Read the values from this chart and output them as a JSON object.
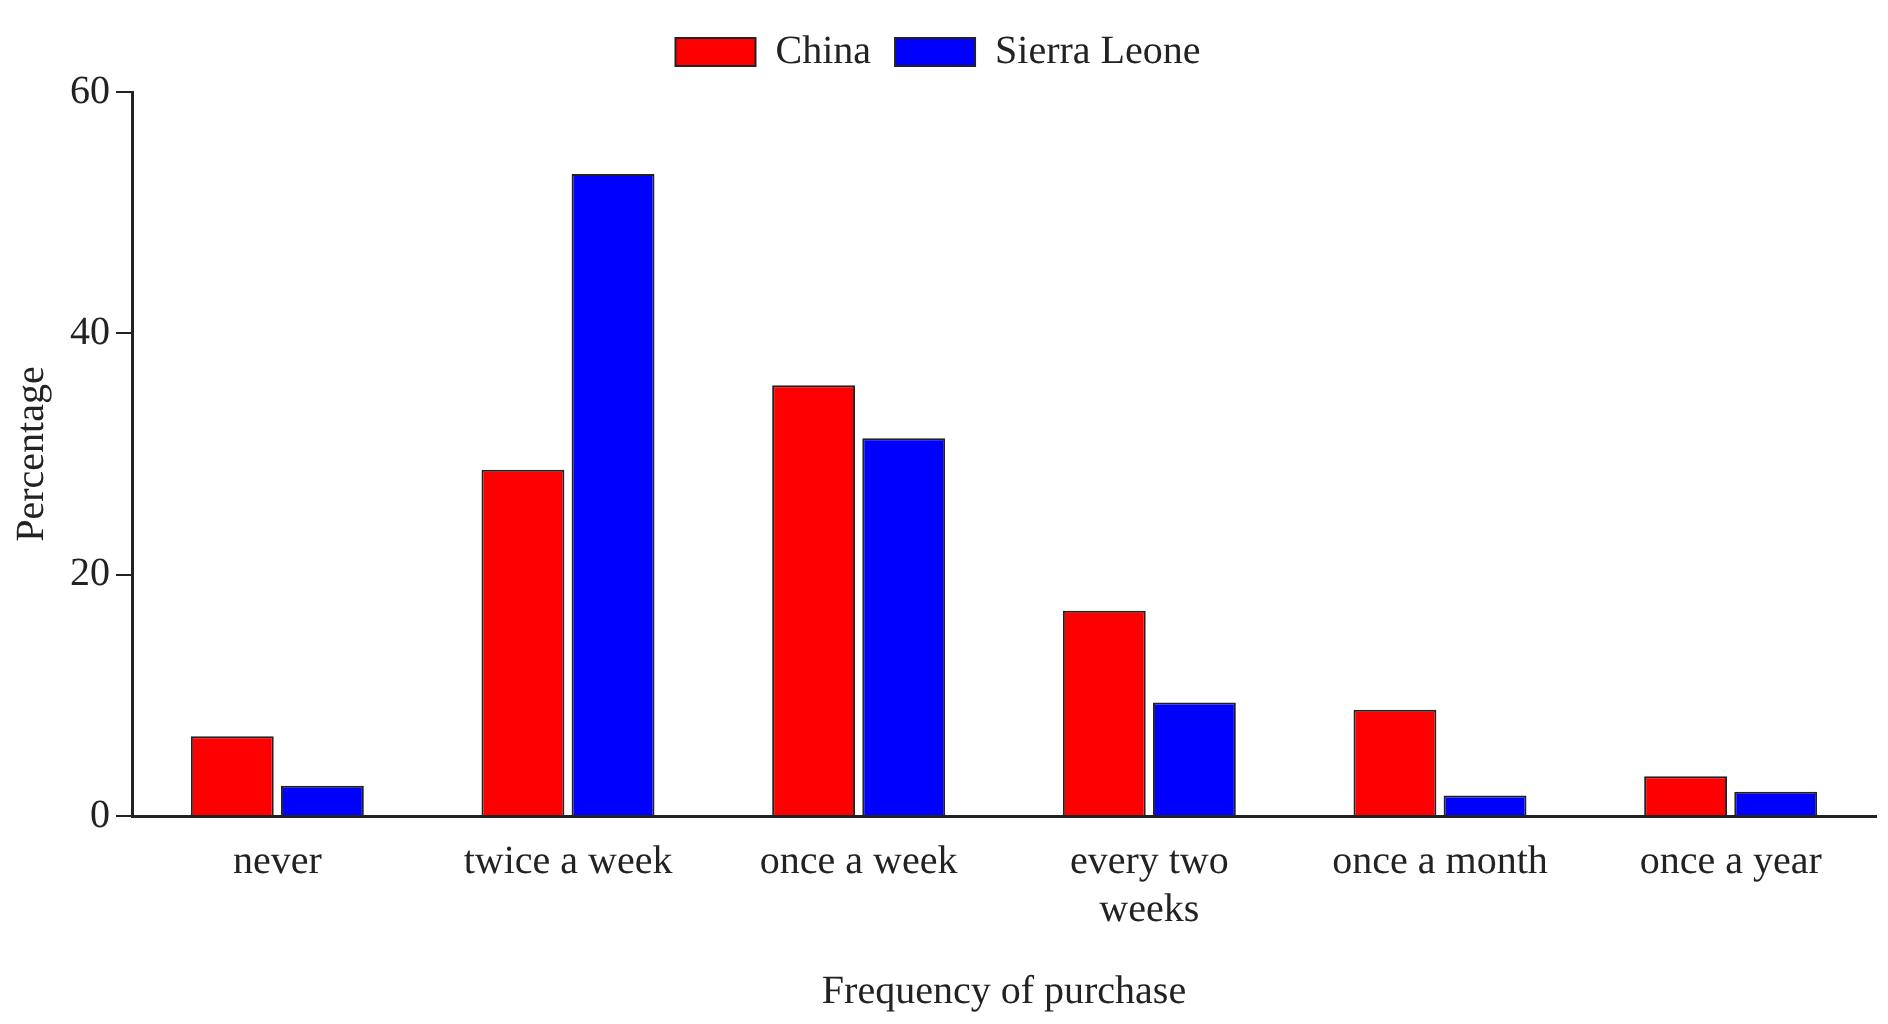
{
  "chart_data": {
    "type": "bar",
    "xlabel": "Frequency of purchase",
    "ylabel": "Percentage",
    "categories": [
      "never",
      "twice a week",
      "once a week",
      "every two weeks",
      "once a month",
      "once a year"
    ],
    "series": [
      {
        "name": "China",
        "color": "#ff0000",
        "values": [
          6.6,
          28.7,
          35.7,
          17.0,
          8.8,
          3.3
        ]
      },
      {
        "name": "Sierra Leone",
        "color": "#0000ff",
        "values": [
          2.5,
          53.2,
          31.3,
          9.4,
          1.7,
          2.0
        ]
      }
    ],
    "ylim": [
      0,
      60
    ],
    "yticks": [
      0,
      20,
      40,
      60
    ],
    "legend": "top"
  }
}
